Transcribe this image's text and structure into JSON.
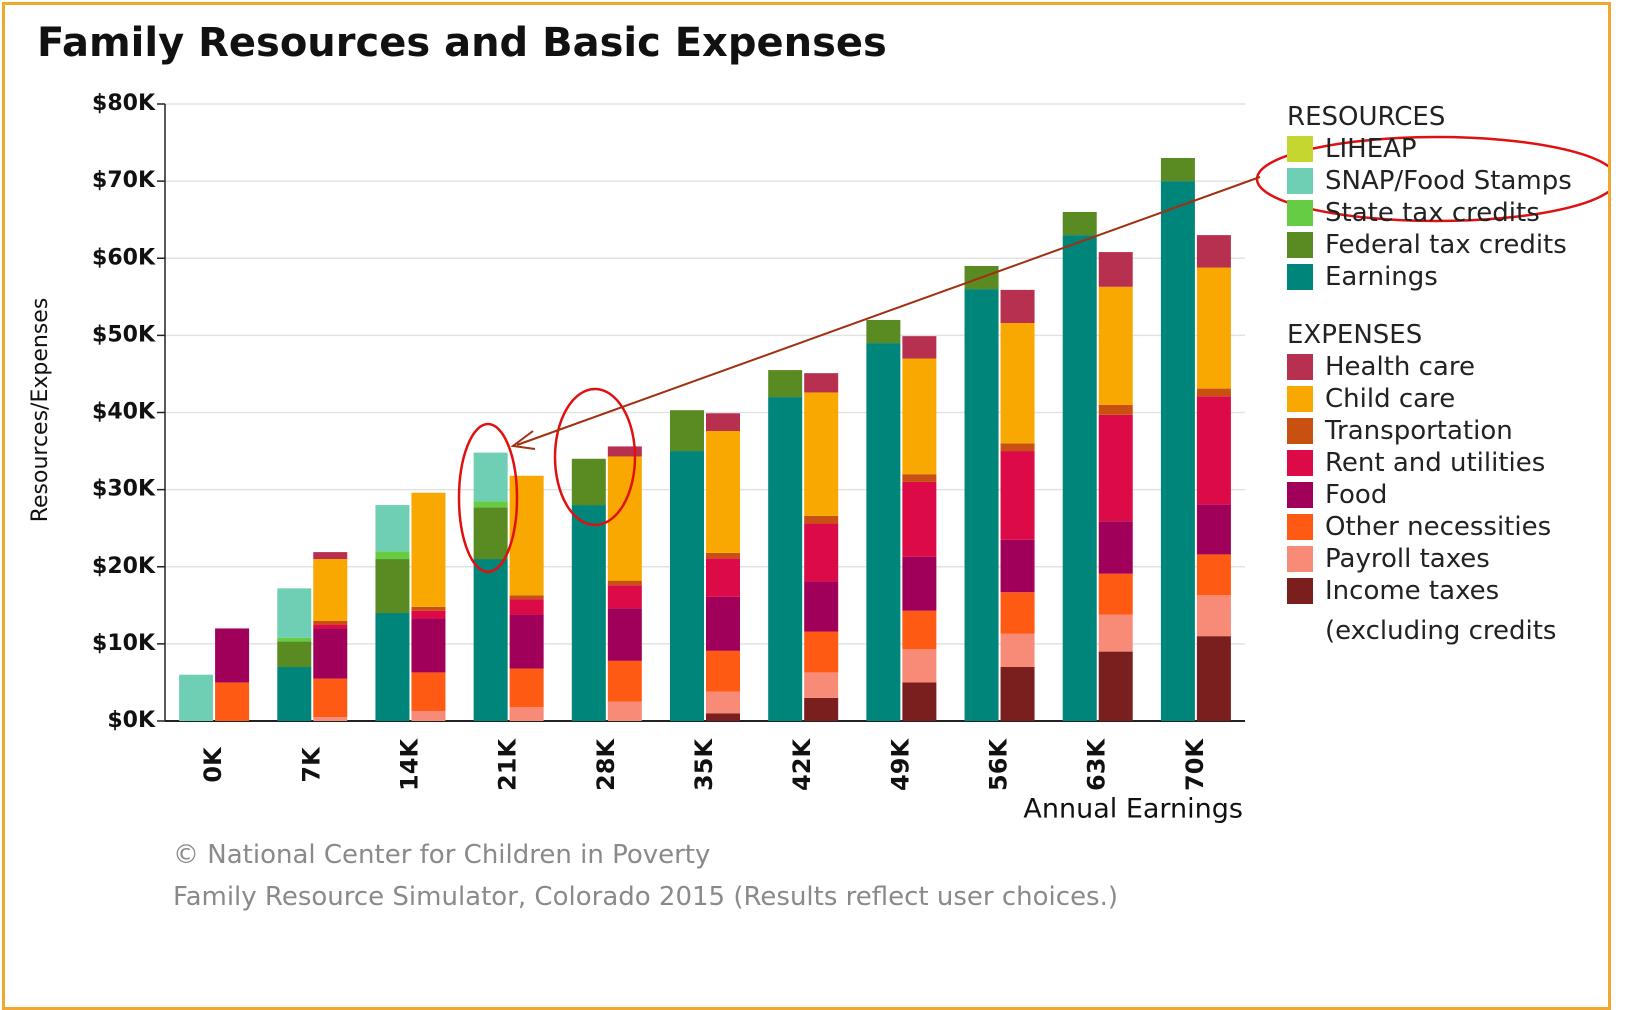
{
  "chart_data": {
    "type": "bar",
    "title": "Family Resources and Basic Expenses",
    "y_label": "Resources/Expenses",
    "x_label": "Annual Earnings",
    "credits": [
      "© National Center for Children in Poverty",
      "Family Resource Simulator, Colorado 2015 (Results reflect user choices.)"
    ],
    "categories": [
      "0K",
      "7K",
      "14K",
      "21K",
      "28K",
      "35K",
      "42K",
      "49K",
      "56K",
      "63K",
      "70K"
    ],
    "ylim": [
      0,
      80
    ],
    "yticks": [
      {
        "value": 0,
        "label": "$0K"
      },
      {
        "value": 10,
        "label": "$10K"
      },
      {
        "value": 20,
        "label": "$20K"
      },
      {
        "value": 30,
        "label": "$30K"
      },
      {
        "value": 40,
        "label": "$40K"
      },
      {
        "value": 50,
        "label": "$50K"
      },
      {
        "value": 60,
        "label": "$60K"
      },
      {
        "value": 70,
        "label": "$70K"
      },
      {
        "value": 80,
        "label": "$80K"
      }
    ],
    "grid": true,
    "resources": {
      "title": "RESOURCES",
      "series": [
        {
          "name": "Earnings",
          "color": "#00857a",
          "values": [
            0,
            7,
            14,
            21,
            28,
            35,
            42,
            49,
            56,
            63,
            70
          ]
        },
        {
          "name": "Federal tax credits",
          "color": "#5a8a22",
          "values": [
            0,
            3.3,
            7,
            6.7,
            6,
            5.3,
            3.5,
            3,
            3,
            3,
            3
          ]
        },
        {
          "name": "State tax credits",
          "color": "#66cc44",
          "values": [
            0,
            0.5,
            1,
            0.8,
            0,
            0,
            0,
            0,
            0,
            0,
            0
          ]
        },
        {
          "name": "SNAP/Food Stamps",
          "color": "#6ecfb5",
          "values": [
            6,
            6.4,
            6,
            6.3,
            0,
            0,
            0,
            0,
            0,
            0,
            0
          ]
        },
        {
          "name": "LIHEAP",
          "color": "#c6d630",
          "values": [
            0,
            0,
            0,
            0,
            0,
            0,
            0,
            0,
            0,
            0,
            0
          ]
        }
      ]
    },
    "expenses": {
      "title": "EXPENSES",
      "series": [
        {
          "name": "Income taxes (excluding credits",
          "color": "#7a1e1e",
          "values": [
            0,
            0,
            0,
            0,
            0,
            1,
            3,
            5,
            7,
            9,
            11
          ]
        },
        {
          "name": "Payroll taxes",
          "color": "#f88a78",
          "values": [
            0,
            0.5,
            1.3,
            1.8,
            2.5,
            2.8,
            3.3,
            4.3,
            4.3,
            4.8,
            5.3
          ]
        },
        {
          "name": "Other necessities",
          "color": "#ff5a14",
          "values": [
            5,
            5,
            5,
            5,
            5.3,
            5.3,
            5.3,
            5,
            5.4,
            5.3,
            5.3
          ]
        },
        {
          "name": "Food",
          "color": "#a0005a",
          "values": [
            7,
            6.5,
            7,
            7,
            6.8,
            7,
            6.5,
            7,
            6.8,
            6.8,
            6.5
          ]
        },
        {
          "name": "Rent and utilities",
          "color": "#dc0a46",
          "values": [
            0,
            0.5,
            1,
            2,
            3,
            5,
            7.5,
            9.7,
            11.5,
            13.8,
            14
          ]
        },
        {
          "name": "Transportation",
          "color": "#c85010",
          "values": [
            0,
            0.5,
            0.5,
            0.5,
            0.6,
            0.7,
            1,
            1,
            1,
            1.3,
            1
          ]
        },
        {
          "name": "Child care",
          "color": "#f8a800",
          "values": [
            0,
            8,
            14.8,
            15.5,
            16.1,
            15.8,
            16,
            15,
            15.6,
            15.3,
            15.7
          ]
        },
        {
          "name": "Health care",
          "color": "#b83050",
          "values": [
            0,
            0.9,
            0,
            0,
            1.3,
            2.3,
            2.5,
            2.9,
            4.3,
            4.5,
            4.2
          ]
        }
      ]
    }
  }
}
